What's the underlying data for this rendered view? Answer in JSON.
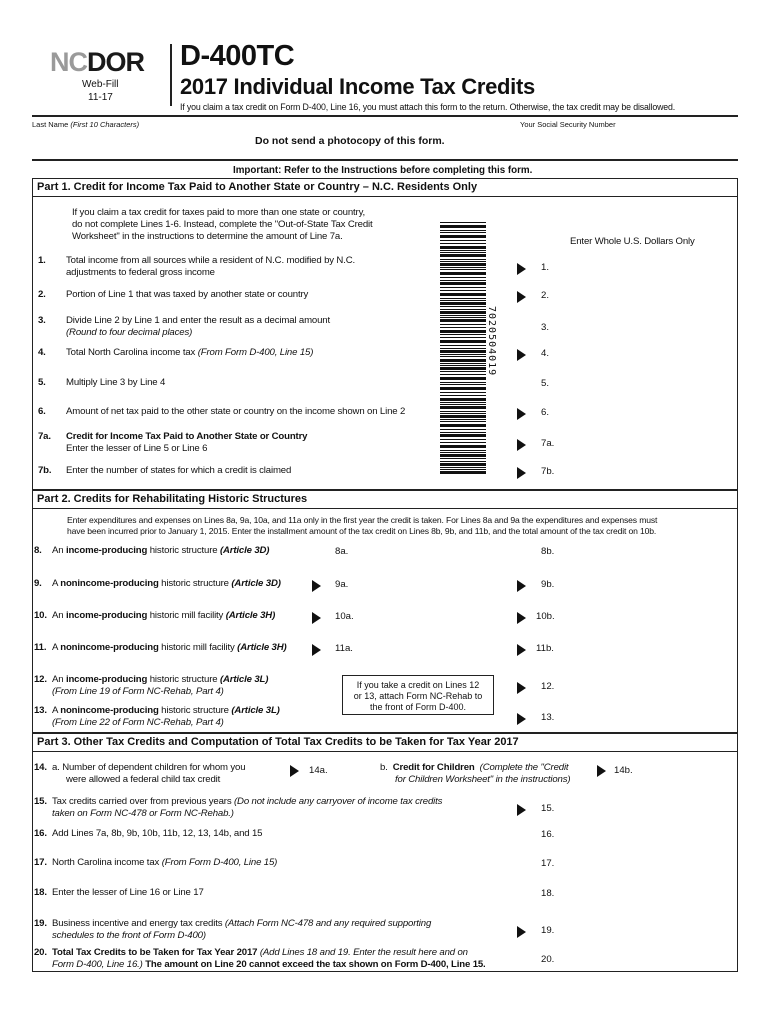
{
  "header": {
    "logo_nc": "NC",
    "logo_dor": "DOR",
    "web_fill": "Web-Fill",
    "version": "11-17",
    "form_number": "D-400TC",
    "form_title": "2017 Individual Income Tax Credits",
    "notice": "If you claim a tax credit on Form D-400, Line 16, you must attach this form to the return.  Otherwise, the tax credit may be disallowed.",
    "last_name_label": "Last Name",
    "last_name_hint": "(First 10 Characters)",
    "ssn_label": "Your Social Security Number",
    "no_photocopy": "Do not send a photocopy of this form.",
    "important": "Important:  Refer to the Instructions before completing this form."
  },
  "barcode_number": "7020504019",
  "part1": {
    "title": "Part 1.  Credit for Income Tax Paid to Another State or Country – N.C. Residents Only",
    "intro": [
      "If you claim a tax credit for taxes paid to more than one state or country,",
      "do not complete Lines 1-6.  Instead, complete the \"Out-of-State Tax Credit",
      "Worksheet\" in the instructions to determine the amount of Line 7a."
    ],
    "dollars_note": "Enter Whole U.S. Dollars Only",
    "lines": [
      {
        "num": "1.",
        "text": [
          [
            [
              "",
              "Total income from all sources while a resident of N.C. modified by N.C."
            ]
          ],
          [
            [
              "",
              "adjustments to federal gross income"
            ]
          ]
        ],
        "box": "1.",
        "arrow": true
      },
      {
        "num": "2.",
        "text": [
          [
            [
              "",
              "Portion of Line 1 that was taxed by another state or country"
            ]
          ]
        ],
        "box": "2.",
        "arrow": true
      },
      {
        "num": "3.",
        "text": [
          [
            [
              "",
              "Divide Line 2 by Line 1 and enter the result as a decimal amount"
            ]
          ],
          [
            [
              "i",
              "(Round to four decimal places)"
            ]
          ]
        ],
        "box": "3.",
        "arrow": false
      },
      {
        "num": "4.",
        "text": [
          [
            [
              "",
              "Total North Carolina income tax "
            ],
            [
              "i",
              "(From Form D-400, Line 15)"
            ]
          ]
        ],
        "box": "4.",
        "arrow": true
      },
      {
        "num": "5.",
        "text": [
          [
            [
              "",
              "Multiply Line 3 by Line 4"
            ]
          ]
        ],
        "box": "5.",
        "arrow": false
      },
      {
        "num": "6.",
        "text": [
          [
            [
              "",
              "Amount of net tax paid to the other state or country on the income shown on Line 2"
            ]
          ]
        ],
        "box": "6.",
        "arrow": true
      },
      {
        "num": "7a.",
        "text": [
          [
            [
              "b",
              "Credit for Income Tax Paid to Another State or Country"
            ]
          ],
          [
            [
              "",
              "Enter the lesser of Line 5 or Line 6"
            ]
          ]
        ],
        "box": "7a.",
        "arrow": true
      },
      {
        "num": "7b.",
        "text": [
          [
            [
              "",
              "Enter the number of states for which a credit is claimed"
            ]
          ]
        ],
        "box": "7b.",
        "arrow": true
      }
    ]
  },
  "part2": {
    "title": "Part 2.  Credits for Rehabilitating Historic Structures",
    "intro": [
      "Enter expenditures and expenses on Lines 8a, 9a, 10a,  and 11a only in the first year the credit is taken.  For Lines 8a and 9a the expenditures and expenses must",
      "have been incurred prior to January 1, 2015.  Enter the installment amount of the tax credit on Lines 8b, 9b, and 11b, and the total amount of the tax credit on 10b."
    ],
    "note_box": [
      "If you take a credit on Lines 12",
      "or 13, attach Form NC-Rehab to",
      "the front of Form D-400."
    ],
    "lines": [
      {
        "num": "8.",
        "text": [
          [
            [
              "",
              "An "
            ],
            [
              "b",
              "income-producing"
            ],
            [
              "",
              " historic structure  "
            ],
            [
              "bi",
              "(Article 3D)"
            ]
          ]
        ],
        "mid": "8a.",
        "mid_arrow": false,
        "box": "8b.",
        "arrow": false
      },
      {
        "num": "9.",
        "text": [
          [
            [
              "",
              "A "
            ],
            [
              "b",
              "nonincome-producing"
            ],
            [
              "",
              " historic structure  "
            ],
            [
              "bi",
              "(Article 3D)"
            ]
          ]
        ],
        "mid": "9a.",
        "mid_arrow": true,
        "box": "9b.",
        "arrow": true
      },
      {
        "num": "10.",
        "text": [
          [
            [
              "",
              "An "
            ],
            [
              "b",
              "income-producing"
            ],
            [
              "",
              " historic mill facility  "
            ],
            [
              "bi",
              "(Article 3H)"
            ]
          ]
        ],
        "mid": "10a.",
        "mid_arrow": true,
        "box": "10b.",
        "arrow": true
      },
      {
        "num": "11.",
        "text": [
          [
            [
              "",
              "A "
            ],
            [
              "b",
              "nonincome-producing"
            ],
            [
              "",
              " historic mill facility  "
            ],
            [
              "bi",
              "(Article 3H)"
            ]
          ]
        ],
        "mid": "11a.",
        "mid_arrow": true,
        "box": "11b.",
        "arrow": true
      },
      {
        "num": "12.",
        "text": [
          [
            [
              "",
              "An "
            ],
            [
              "b",
              "income-producing"
            ],
            [
              "",
              " historic structure "
            ],
            [
              "bi",
              "(Article 3L)"
            ]
          ],
          [
            [
              "i",
              "(From Line 19 of Form NC-Rehab, Part 4)"
            ]
          ]
        ],
        "box": "12.",
        "arrow": true
      },
      {
        "num": "13.",
        "text": [
          [
            [
              "",
              "A "
            ],
            [
              "b",
              "nonincome-producing"
            ],
            [
              "",
              " historic structure "
            ],
            [
              "bi",
              "(Article 3L)"
            ]
          ],
          [
            [
              "i",
              "(From Line 22 of Form NC-Rehab, Part 4)"
            ]
          ]
        ],
        "box": "13.",
        "arrow": true
      }
    ]
  },
  "part3": {
    "title": "Part 3.  Other Tax Credits and Computation of Total Tax Credits to be Taken for Tax Year 2017",
    "line14": {
      "num": "14.",
      "a_text": [
        "a.  Number of dependent children for whom you",
        "were allowed a federal child tax credit"
      ],
      "a_box": "14a.",
      "b_prefix": "b.",
      "b_bold": "Credit for Children",
      "b_italic": [
        "(Complete the \"Credit",
        "for Children Worksheet\" in the instructions)"
      ],
      "b_box": "14b."
    },
    "lines": [
      {
        "num": "15.",
        "text": [
          [
            [
              "",
              "Tax credits carried over from previous years "
            ],
            [
              "i",
              "(Do not include any carryover of income tax credits"
            ]
          ],
          [
            [
              "i",
              "taken on Form NC-478 or Form NC-Rehab.)"
            ]
          ]
        ],
        "box": "15.",
        "arrow": true
      },
      {
        "num": "16.",
        "text": [
          [
            [
              "",
              "Add Lines 7a, 8b, 9b, 10b, 11b, 12, 13, 14b, and 15"
            ]
          ]
        ],
        "box": "16.",
        "arrow": false
      },
      {
        "num": "17.",
        "text": [
          [
            [
              "",
              "North Carolina income tax "
            ],
            [
              "i",
              "(From Form D-400, Line 15)"
            ]
          ]
        ],
        "box": "17.",
        "arrow": false
      },
      {
        "num": "18.",
        "text": [
          [
            [
              "",
              "Enter the lesser of Line 16 or Line 17"
            ]
          ]
        ],
        "box": "18.",
        "arrow": false
      },
      {
        "num": "19.",
        "text": [
          [
            [
              "",
              "Business incentive and energy tax credits "
            ],
            [
              "i",
              "(Attach Form NC-478 and any required supporting"
            ]
          ],
          [
            [
              "i",
              "schedules to the front of Form D-400)"
            ]
          ]
        ],
        "box": "19.",
        "arrow": true
      },
      {
        "num": "20.",
        "text": [
          [
            [
              "b",
              "Total Tax Credits to be Taken for Tax Year 2017 "
            ],
            [
              "i",
              "(Add Lines 18 and 19.  Enter the result here and on"
            ]
          ],
          [
            [
              "i",
              "Form D-400, Line 16.) "
            ],
            [
              "b",
              "The amount on Line 20 cannot exceed the tax shown on Form D-400, Line 15."
            ]
          ]
        ],
        "box": "20.",
        "arrow": false
      }
    ]
  }
}
